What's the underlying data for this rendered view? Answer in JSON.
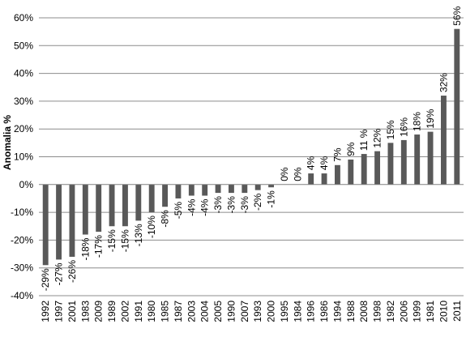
{
  "chart_data": {
    "type": "bar",
    "ylabel": "Anomalia %",
    "ylim": [
      -40,
      60
    ],
    "ytick_values": [
      -40,
      -30,
      -20,
      -10,
      0,
      10,
      20,
      30,
      40,
      50,
      60
    ],
    "ytick_labels": [
      "-40%",
      "-30%",
      "-20%",
      "-10%",
      "0%",
      "10%",
      "20%",
      "30%",
      "40%",
      "50%",
      "60%"
    ],
    "grid": true,
    "bar_color": "#595959",
    "categories": [
      "1992",
      "1997",
      "2001",
      "1983",
      "2009",
      "1989",
      "2002",
      "1991",
      "1980",
      "1985",
      "1987",
      "2003",
      "2004",
      "2005",
      "1990",
      "2007",
      "1993",
      "2000",
      "1995",
      "1984",
      "1996",
      "1986",
      "1994",
      "1988",
      "2008",
      "1998",
      "1982",
      "2006",
      "1999",
      "1981",
      "2010",
      "2011"
    ],
    "values": [
      -29,
      -27,
      -26,
      -18,
      -17,
      -15,
      -15,
      -13,
      -10,
      -8,
      -5,
      -4,
      -4,
      -3,
      -3,
      -3,
      -2,
      -1,
      0,
      0,
      4,
      4,
      7,
      9,
      11,
      12,
      15,
      16,
      18,
      19,
      32,
      56
    ],
    "data_labels": [
      "-29%",
      "-27%",
      "-26%",
      "-18%",
      "-17%",
      "-15%",
      "-15%",
      "-13%",
      "-10%",
      "-8%",
      "-5%",
      "-4%",
      "-4%",
      "-3%",
      "-3%",
      "-3%",
      "-2%",
      "-1%",
      "0%",
      "0%",
      "4%",
      "4%",
      "7%",
      "9%",
      "11 %",
      "12%",
      "15%",
      "16%",
      "18%",
      "19%",
      "32%",
      "56%"
    ]
  }
}
